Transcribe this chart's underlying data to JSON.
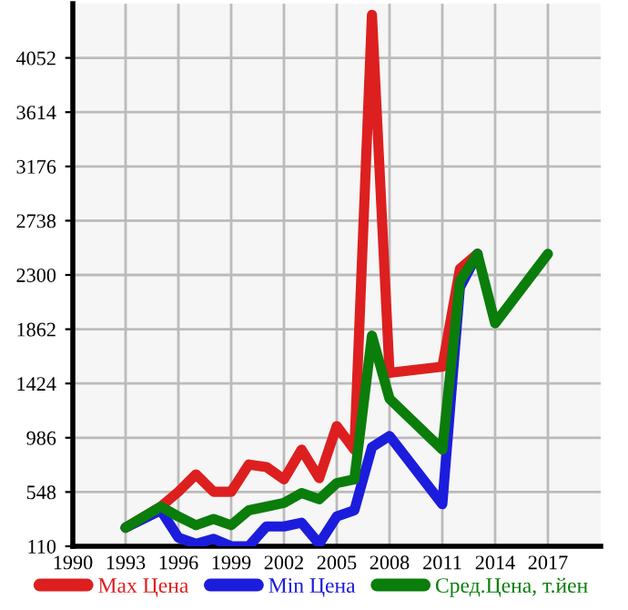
{
  "chart_data": {
    "type": "line",
    "xlim": [
      1990,
      2020
    ],
    "xticks": [
      1990,
      1993,
      1996,
      1999,
      2002,
      2005,
      2008,
      2011,
      2014,
      2017
    ],
    "ylim": [
      110,
      4490
    ],
    "yticks": [
      110,
      548,
      986,
      1424,
      1862,
      2300,
      2738,
      3176,
      3614,
      4052
    ],
    "grid": true,
    "legend": "bottom",
    "marker": "none",
    "line_style": "solid",
    "series": [
      {
        "name": "Max Цена",
        "color": "#dd1f1f",
        "x": [
          1993,
          1995,
          1996,
          1997,
          1998,
          1999,
          2000,
          2001,
          2002,
          2003,
          2004,
          2005,
          2006,
          2007,
          2008,
          2011,
          2012,
          2013
        ],
        "values": [
          260,
          430,
          550,
          690,
          550,
          550,
          770,
          750,
          650,
          890,
          660,
          1080,
          890,
          4400,
          1510,
          1560,
          2350,
          2470
        ]
      },
      {
        "name": "Min Цена",
        "color": "#1c1cdc",
        "x": [
          1993,
          1995,
          1996,
          1997,
          1998,
          1999,
          2000,
          2001,
          2002,
          2003,
          2004,
          2005,
          2006,
          2007,
          2008,
          2011,
          2012,
          2013
        ],
        "values": [
          260,
          400,
          180,
          130,
          170,
          110,
          110,
          270,
          270,
          300,
          130,
          350,
          400,
          910,
          1000,
          450,
          2200,
          2470
        ]
      },
      {
        "name": "Сред.Цена, т.йен",
        "color": "#0a7d0a",
        "x": [
          1993,
          1995,
          1996,
          1997,
          1998,
          1999,
          2000,
          2001,
          2002,
          2003,
          2004,
          2005,
          2006,
          2007,
          2008,
          2011,
          2012,
          2013,
          2014,
          2017
        ],
        "values": [
          260,
          430,
          350,
          280,
          330,
          280,
          400,
          430,
          460,
          540,
          490,
          620,
          650,
          1810,
          1300,
          890,
          2250,
          2470,
          1910,
          2470
        ]
      }
    ]
  }
}
